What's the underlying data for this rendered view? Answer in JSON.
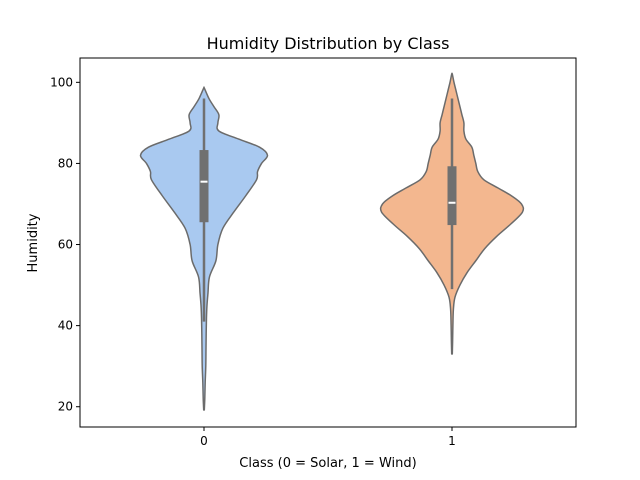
{
  "chart_data": {
    "type": "violin",
    "title": "Humidity Distribution by Class",
    "xlabel": "Class (0 = Solar, 1 = Wind)",
    "ylabel": "Humidity",
    "categories": [
      "0",
      "1"
    ],
    "ylim": [
      15,
      106
    ],
    "yticks": [
      20,
      40,
      60,
      80,
      100
    ],
    "ytick_labels": [
      "20",
      "40",
      "60",
      "80",
      "100"
    ],
    "grid": false,
    "series": [
      {
        "category": "0",
        "color": "#a9c9f0",
        "edge_color": "#6b6b6b",
        "density": [
          [
            19.2,
            0.003
          ],
          [
            22,
            0.008
          ],
          [
            26,
            0.012
          ],
          [
            30,
            0.018
          ],
          [
            34,
            0.02
          ],
          [
            38,
            0.022
          ],
          [
            42,
            0.025
          ],
          [
            45,
            0.03
          ],
          [
            48,
            0.04
          ],
          [
            52,
            0.055
          ],
          [
            56,
            0.12
          ],
          [
            60,
            0.14
          ],
          [
            64,
            0.19
          ],
          [
            68,
            0.3
          ],
          [
            72,
            0.42
          ],
          [
            76,
            0.53
          ],
          [
            78,
            0.54
          ],
          [
            80,
            0.58
          ],
          [
            82,
            0.64
          ],
          [
            84,
            0.56
          ],
          [
            86,
            0.35
          ],
          [
            88,
            0.15
          ],
          [
            90,
            0.14
          ],
          [
            92,
            0.15
          ],
          [
            94,
            0.1
          ],
          [
            96,
            0.05
          ],
          [
            98.5,
            0.004
          ]
        ],
        "box": {
          "whisker_low": 41,
          "q1": 65.5,
          "median": 75.5,
          "q3": 83.3,
          "whisker_high": 96
        }
      },
      {
        "category": "1",
        "color": "#f3b78f",
        "edge_color": "#6b6b6b",
        "density": [
          [
            33,
            0.003
          ],
          [
            36,
            0.006
          ],
          [
            40,
            0.009
          ],
          [
            44,
            0.014
          ],
          [
            47,
            0.03
          ],
          [
            50,
            0.08
          ],
          [
            53,
            0.15
          ],
          [
            56,
            0.24
          ],
          [
            59,
            0.33
          ],
          [
            62,
            0.45
          ],
          [
            65,
            0.59
          ],
          [
            68,
            0.71
          ],
          [
            70,
            0.7
          ],
          [
            72,
            0.6
          ],
          [
            74,
            0.46
          ],
          [
            76,
            0.32
          ],
          [
            78,
            0.26
          ],
          [
            80,
            0.24
          ],
          [
            82,
            0.22
          ],
          [
            84,
            0.2
          ],
          [
            86,
            0.14
          ],
          [
            88,
            0.12
          ],
          [
            90,
            0.12
          ],
          [
            92,
            0.1
          ],
          [
            94,
            0.08
          ],
          [
            96,
            0.06
          ],
          [
            98,
            0.04
          ],
          [
            100,
            0.02
          ],
          [
            102,
            0.003
          ]
        ],
        "box": {
          "whisker_low": 49,
          "q1": 64.8,
          "median": 70.3,
          "q3": 79.3,
          "whisker_high": 96
        }
      }
    ]
  }
}
